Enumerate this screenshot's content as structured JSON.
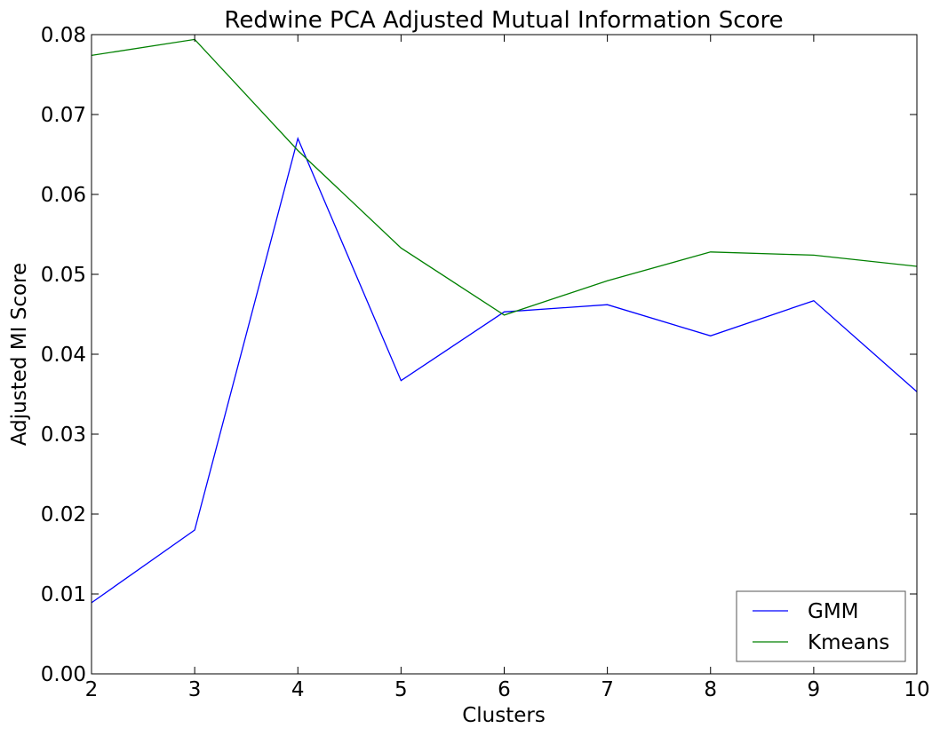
{
  "chart_data": {
    "type": "line",
    "title": "Redwine PCA Adjusted Mutual Information Score",
    "xlabel": "Clusters",
    "ylabel": "Adjusted MI Score",
    "x": [
      2,
      3,
      4,
      5,
      6,
      7,
      8,
      9,
      10
    ],
    "xlim": [
      2,
      10
    ],
    "ylim": [
      0.0,
      0.08
    ],
    "xticks": [
      "2",
      "3",
      "4",
      "5",
      "6",
      "7",
      "8",
      "9",
      "10"
    ],
    "yticks": [
      "0.00",
      "0.01",
      "0.02",
      "0.03",
      "0.04",
      "0.05",
      "0.06",
      "0.07",
      "0.08"
    ],
    "grid": false,
    "legend_position": "lower-right",
    "series": [
      {
        "name": "GMM",
        "color": "#0000ff",
        "values": [
          0.0089,
          0.018,
          0.067,
          0.0367,
          0.0453,
          0.0462,
          0.0423,
          0.0467,
          0.0353
        ]
      },
      {
        "name": "Kmeans",
        "color": "#008000",
        "values": [
          0.0774,
          0.0794,
          0.0655,
          0.0533,
          0.0449,
          0.0492,
          0.0528,
          0.0524,
          0.051
        ]
      }
    ]
  }
}
